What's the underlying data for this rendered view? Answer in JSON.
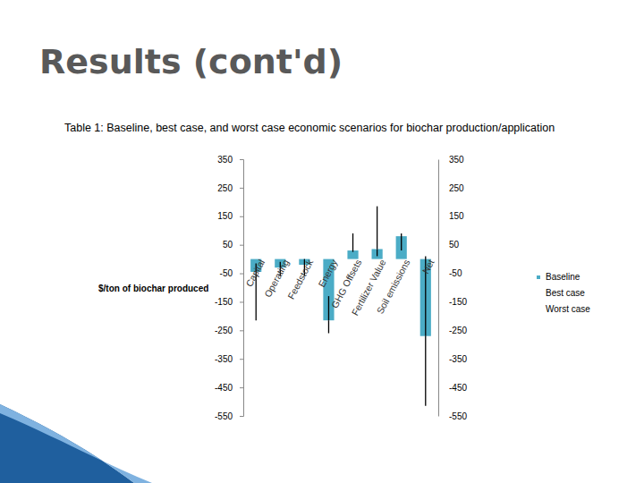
{
  "chart_data": {
    "type": "bar",
    "title": "Results (cont'd)",
    "subtitle": "Table 1: Baseline, best case, and worst case economic scenarios for biochar production/application",
    "y_label": "$/ton of biochar produced",
    "categories": [
      "Capital",
      "Operating",
      "Feedstock",
      "Energy",
      "GHG Offsets",
      "Fertilizer Value",
      "Soil emissions",
      "Net"
    ],
    "series": [
      {
        "name": "Baseline",
        "type": "bar",
        "color": "#4bacc6",
        "values": [
          -45,
          -30,
          -20,
          -215,
          30,
          35,
          80,
          -270
        ]
      },
      {
        "name": "Best case",
        "type": "error_bar",
        "color": "#000000",
        "values": [
          -15,
          -10,
          0,
          -130,
          90,
          185,
          90,
          10
        ]
      },
      {
        "name": "Worst case",
        "type": "error_bar",
        "color": "#000000",
        "values": [
          -215,
          -60,
          -60,
          -260,
          25,
          10,
          30,
          -515
        ]
      }
    ],
    "ylim": [
      -550,
      350
    ],
    "yticks": [
      -550,
      -450,
      -350,
      -250,
      -150,
      -50,
      50,
      150,
      250,
      350
    ],
    "y2lim": [
      -550,
      350
    ],
    "y2ticks": [
      -550,
      -450,
      -350,
      -250,
      -150,
      -50,
      50,
      150,
      250,
      350
    ],
    "legend": "right",
    "grid": false
  }
}
